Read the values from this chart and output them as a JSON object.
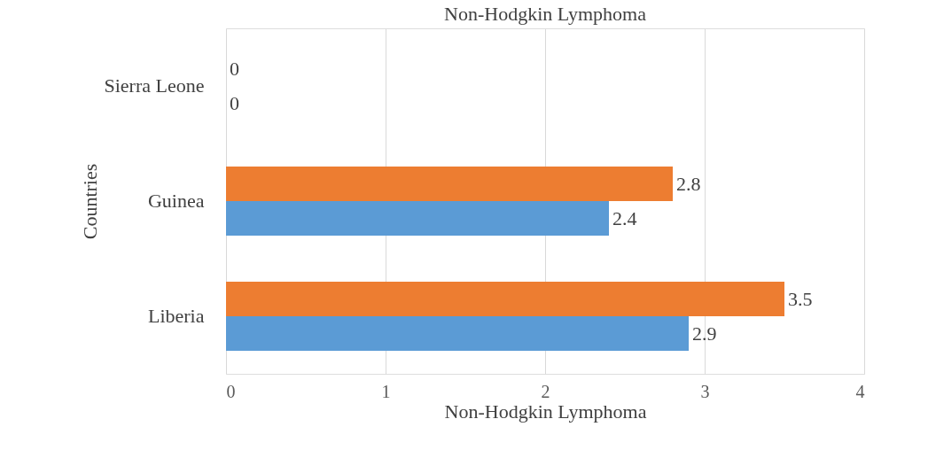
{
  "chart_data": {
    "type": "bar",
    "orientation": "horizontal",
    "title": "Non-Hodgkin Lymphoma",
    "xlabel": "Non-Hodgkin Lymphoma",
    "ylabel": "Countries",
    "categories": [
      "Sierra Leone",
      "Guinea",
      "Liberia"
    ],
    "series": [
      {
        "color": "#ed7d31",
        "values": [
          0,
          2.8,
          3.5
        ]
      },
      {
        "color": "#5b9bd5",
        "values": [
          0,
          2.4,
          2.9
        ]
      }
    ],
    "xlim": [
      0,
      4
    ],
    "xticks": [
      0,
      1,
      2,
      3,
      4
    ],
    "grid": "x",
    "data_labels": true
  }
}
